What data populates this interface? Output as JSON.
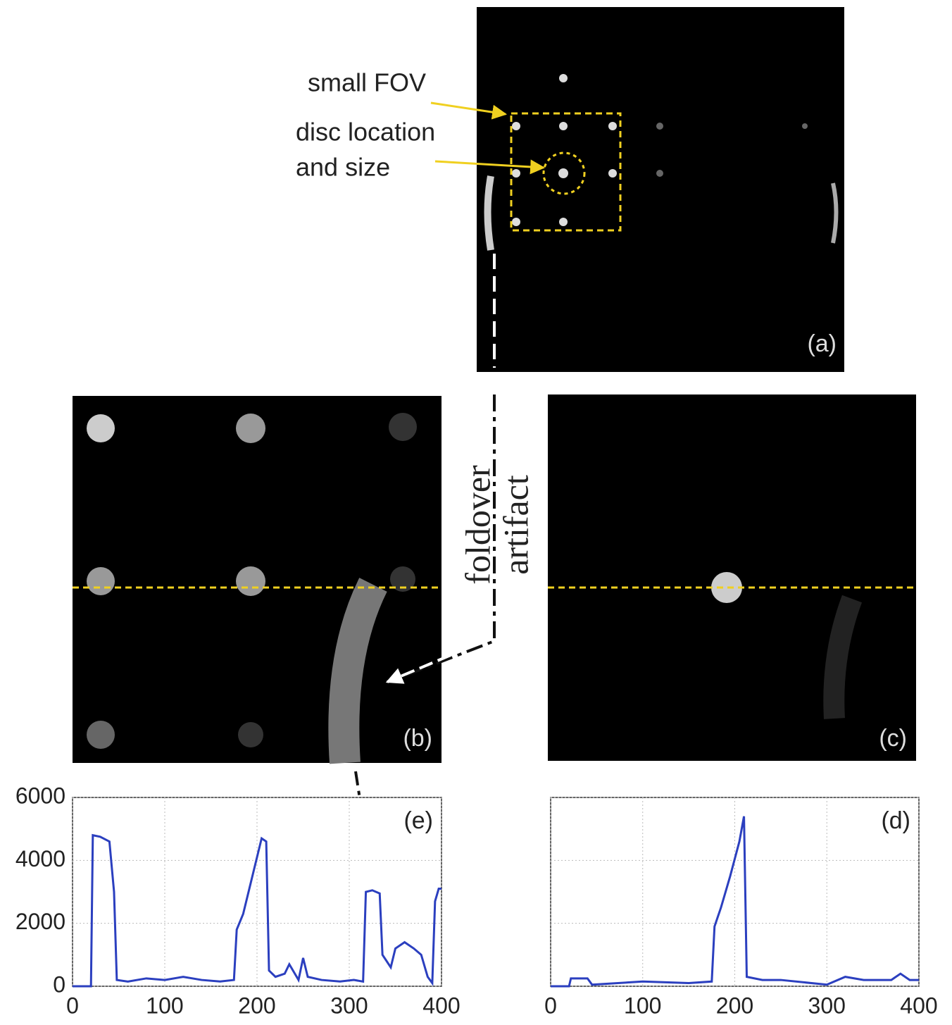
{
  "annotations": {
    "small_fov": "small FOV",
    "disc_line1": "disc location",
    "disc_line2": "and size",
    "foldover_line1": "foldover",
    "foldover_line2": "artifact"
  },
  "panels": {
    "a": "(a)",
    "b": "(b)",
    "c": "(c)"
  },
  "chart_data": [
    {
      "type": "line",
      "annotation": "(e)",
      "color": "#2b3fbf",
      "grid": true,
      "show_ytick_labels": true,
      "x": [
        0,
        20,
        22,
        30,
        40,
        45,
        48,
        60,
        80,
        100,
        120,
        140,
        160,
        175,
        178,
        185,
        195,
        205,
        210,
        213,
        220,
        230,
        235,
        245,
        250,
        255,
        270,
        290,
        305,
        315,
        318,
        325,
        333,
        336,
        345,
        350,
        360,
        370,
        378,
        385,
        390,
        393,
        397,
        400
      ],
      "values": [
        0,
        0,
        4800,
        4750,
        4600,
        3000,
        200,
        150,
        250,
        200,
        300,
        200,
        150,
        200,
        1800,
        2300,
        3500,
        4700,
        4600,
        500,
        300,
        400,
        700,
        200,
        900,
        300,
        200,
        150,
        200,
        150,
        3000,
        3050,
        2950,
        1000,
        600,
        1200,
        1400,
        1200,
        1000,
        300,
        100,
        2700,
        3100,
        3100
      ],
      "xlim": [
        0,
        400
      ],
      "ylim": [
        0,
        6000
      ],
      "xticks": [
        0,
        100,
        200,
        300,
        400
      ],
      "yticks": [
        0,
        2000,
        4000,
        6000
      ]
    },
    {
      "type": "line",
      "annotation": "(d)",
      "color": "#2b3fbf",
      "grid": true,
      "show_ytick_labels": false,
      "x": [
        0,
        20,
        22,
        40,
        45,
        100,
        150,
        175,
        178,
        185,
        195,
        205,
        210,
        213,
        230,
        250,
        300,
        320,
        340,
        370,
        380,
        390,
        400
      ],
      "values": [
        0,
        0,
        250,
        250,
        50,
        150,
        100,
        150,
        1900,
        2500,
        3500,
        4600,
        5400,
        300,
        200,
        200,
        50,
        300,
        200,
        200,
        400,
        200,
        200
      ],
      "xlim": [
        0,
        400
      ],
      "ylim": [
        0,
        6000
      ],
      "xticks": [
        0,
        100,
        200,
        300,
        400
      ],
      "yticks": [
        0,
        2000,
        4000,
        6000
      ]
    }
  ]
}
